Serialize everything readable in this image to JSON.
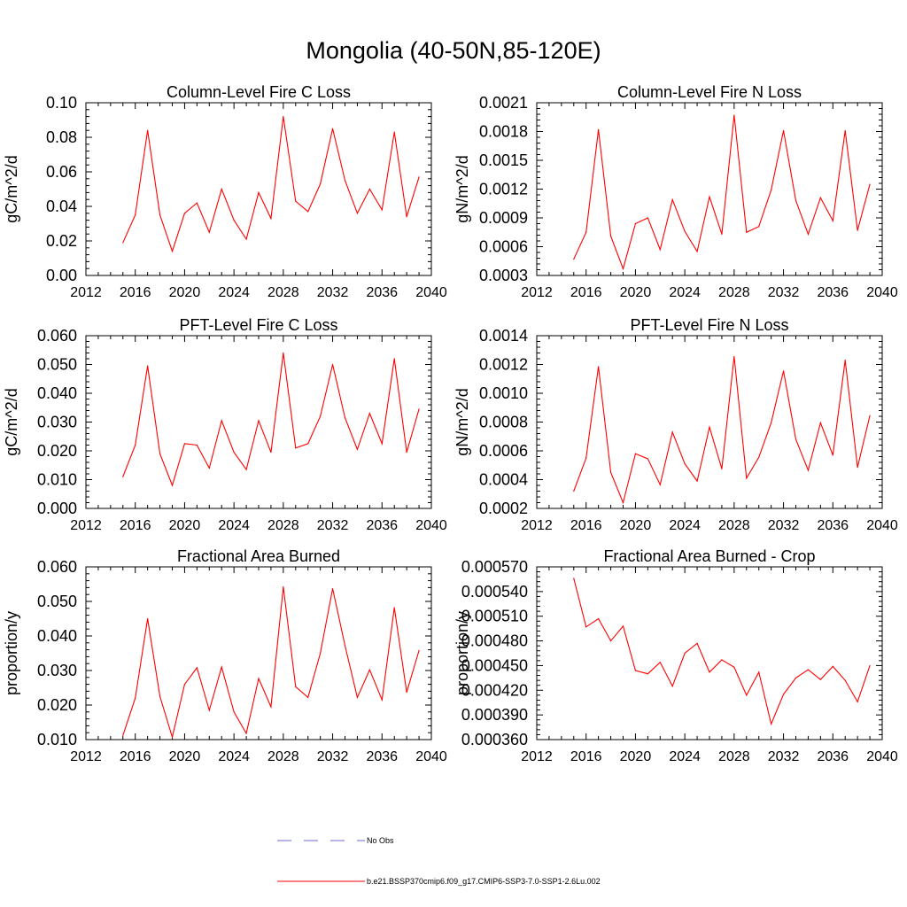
{
  "figure": {
    "title": "Mongolia (40-50N,85-120E)"
  },
  "legend": {
    "items": [
      {
        "label": "No Obs",
        "color": "#6a6ad0",
        "dash": true
      },
      {
        "label": "b.e21.BSSP370cmip6.f09_g17.CMIP6-SSP3-7.0-SSP1-2.6Lu.002",
        "color": "#ff0000",
        "dash": false
      }
    ]
  },
  "chart_data": [
    {
      "type": "line",
      "title": "Column-Level Fire C Loss",
      "ylabel": "gC/m^2/d",
      "xlabel": "",
      "xlim": [
        2012,
        2040
      ],
      "ylim": [
        0,
        0.1
      ],
      "xticks": [
        "2012",
        "2016",
        "2020",
        "2024",
        "2028",
        "2032",
        "2036",
        "2040"
      ],
      "yticks": [
        "0.00",
        "0.02",
        "0.04",
        "0.06",
        "0.08",
        "0.10"
      ],
      "x": [
        2015,
        2016,
        2017,
        2018,
        2019,
        2020,
        2021,
        2022,
        2023,
        2024,
        2025,
        2026,
        2027,
        2028,
        2029,
        2030,
        2031,
        2032,
        2033,
        2034,
        2035,
        2036,
        2037,
        2038,
        2039
      ],
      "series": [
        {
          "name": "",
          "color": "#ff0000",
          "values": [
            0.019,
            0.035,
            0.084,
            0.035,
            0.014,
            0.036,
            0.042,
            0.025,
            0.05,
            0.032,
            0.021,
            0.048,
            0.033,
            0.092,
            0.043,
            0.037,
            0.053,
            0.085,
            0.055,
            0.036,
            0.05,
            0.038,
            0.083,
            0.034,
            0.057
          ]
        }
      ]
    },
    {
      "type": "line",
      "title": "Column-Level Fire N Loss",
      "ylabel": "gN/m^2/d",
      "xlabel": "",
      "xlim": [
        2012,
        2040
      ],
      "ylim": [
        0.0003,
        0.0021
      ],
      "xticks": [
        "2012",
        "2016",
        "2020",
        "2024",
        "2028",
        "2032",
        "2036",
        "2040"
      ],
      "yticks": [
        "0.0003",
        "0.0006",
        "0.0009",
        "0.0012",
        "0.0015",
        "0.0018",
        "0.0021"
      ],
      "x": [
        2015,
        2016,
        2017,
        2018,
        2019,
        2020,
        2021,
        2022,
        2023,
        2024,
        2025,
        2026,
        2027,
        2028,
        2029,
        2030,
        2031,
        2032,
        2033,
        2034,
        2035,
        2036,
        2037,
        2038,
        2039
      ],
      "series": [
        {
          "name": "",
          "color": "#ff0000",
          "values": [
            0.00047,
            0.00075,
            0.00182,
            0.00071,
            0.00037,
            0.00084,
            0.0009,
            0.00057,
            0.00109,
            0.00076,
            0.00055,
            0.00112,
            0.00073,
            0.00197,
            0.00075,
            0.00081,
            0.00119,
            0.00181,
            0.00108,
            0.00073,
            0.00111,
            0.00087,
            0.00181,
            0.00077,
            0.00125
          ]
        }
      ]
    },
    {
      "type": "line",
      "title": "PFT-Level Fire C Loss",
      "ylabel": "gC/m^2/d",
      "xlabel": "",
      "xlim": [
        2012,
        2040
      ],
      "ylim": [
        0,
        0.06
      ],
      "xticks": [
        "2012",
        "2016",
        "2020",
        "2024",
        "2028",
        "2032",
        "2036",
        "2040"
      ],
      "yticks": [
        "0.000",
        "0.010",
        "0.020",
        "0.030",
        "0.040",
        "0.050",
        "0.060"
      ],
      "x": [
        2015,
        2016,
        2017,
        2018,
        2019,
        2020,
        2021,
        2022,
        2023,
        2024,
        2025,
        2026,
        2027,
        2028,
        2029,
        2030,
        2031,
        2032,
        2033,
        2034,
        2035,
        2036,
        2037,
        2038,
        2039
      ],
      "series": [
        {
          "name": "",
          "color": "#ff0000",
          "values": [
            0.011,
            0.022,
            0.0495,
            0.019,
            0.008,
            0.0225,
            0.022,
            0.014,
            0.0305,
            0.0195,
            0.0135,
            0.0305,
            0.0195,
            0.054,
            0.021,
            0.0225,
            0.032,
            0.05,
            0.0315,
            0.0205,
            0.033,
            0.0225,
            0.052,
            0.0195,
            0.0345
          ]
        }
      ]
    },
    {
      "type": "line",
      "title": "PFT-Level Fire N Loss",
      "ylabel": "gN/m^2/d",
      "xlabel": "",
      "xlim": [
        2012,
        2040
      ],
      "ylim": [
        0.0002,
        0.0014
      ],
      "xticks": [
        "2012",
        "2016",
        "2020",
        "2024",
        "2028",
        "2032",
        "2036",
        "2040"
      ],
      "yticks": [
        "0.0002",
        "0.0004",
        "0.0006",
        "0.0008",
        "0.0010",
        "0.0012",
        "0.0014"
      ],
      "x": [
        2015,
        2016,
        2017,
        2018,
        2019,
        2020,
        2021,
        2022,
        2023,
        2024,
        2025,
        2026,
        2027,
        2028,
        2029,
        2030,
        2031,
        2032,
        2033,
        2034,
        2035,
        2036,
        2037,
        2038,
        2039
      ],
      "series": [
        {
          "name": "",
          "color": "#ff0000",
          "values": [
            0.00032,
            0.00055,
            0.001185,
            0.00045,
            0.00024,
            0.00058,
            0.000545,
            0.000365,
            0.00073,
            0.00051,
            0.00039,
            0.000765,
            0.000475,
            0.001255,
            0.00041,
            0.000555,
            0.000795,
            0.001155,
            0.00068,
            0.000465,
            0.000795,
            0.00057,
            0.00123,
            0.000485,
            0.000845
          ]
        }
      ]
    },
    {
      "type": "line",
      "title": "Fractional Area Burned",
      "ylabel": "proportion/y",
      "xlabel": "",
      "xlim": [
        2012,
        2040
      ],
      "ylim": [
        0.01,
        0.06
      ],
      "xticks": [
        "2012",
        "2016",
        "2020",
        "2024",
        "2028",
        "2032",
        "2036",
        "2040"
      ],
      "yticks": [
        "0.010",
        "0.020",
        "0.030",
        "0.040",
        "0.050",
        "0.060"
      ],
      "x": [
        2015,
        2016,
        2017,
        2018,
        2019,
        2020,
        2021,
        2022,
        2023,
        2024,
        2025,
        2026,
        2027,
        2028,
        2029,
        2030,
        2031,
        2032,
        2033,
        2034,
        2035,
        2036,
        2037,
        2038,
        2039
      ],
      "series": [
        {
          "name": "",
          "color": "#ff0000",
          "values": [
            0.0112,
            0.022,
            0.045,
            0.0225,
            0.0107,
            0.026,
            0.0308,
            0.0185,
            0.031,
            0.018,
            0.0118,
            0.0277,
            0.0195,
            0.0542,
            0.0253,
            0.0222,
            0.035,
            0.0537,
            0.0372,
            0.0222,
            0.0302,
            0.0215,
            0.0482,
            0.0237,
            0.0358
          ]
        }
      ]
    },
    {
      "type": "line",
      "title": "Fractional Area Burned - Crop",
      "ylabel": "proportion/y",
      "xlabel": "",
      "xlim": [
        2012,
        2040
      ],
      "ylim": [
        0.00036,
        0.00057
      ],
      "xticks": [
        "2012",
        "2016",
        "2020",
        "2024",
        "2028",
        "2032",
        "2036",
        "2040"
      ],
      "yticks": [
        "0.000360",
        "0.000390",
        "0.000420",
        "0.000450",
        "0.000480",
        "0.000510",
        "0.000540",
        "0.000570"
      ],
      "x": [
        2015,
        2016,
        2017,
        2018,
        2019,
        2020,
        2021,
        2022,
        2023,
        2024,
        2025,
        2026,
        2027,
        2028,
        2029,
        2030,
        2031,
        2032,
        2033,
        2034,
        2035,
        2036,
        2037,
        2038,
        2039
      ],
      "series": [
        {
          "name": "",
          "color": "#ff0000",
          "values": [
            0.000556,
            0.000497,
            0.000507,
            0.00048,
            0.000498,
            0.000444,
            0.00044,
            0.000454,
            0.000425,
            0.000465,
            0.000477,
            0.000442,
            0.000457,
            0.000448,
            0.000414,
            0.000442,
            0.000379,
            0.000415,
            0.000435,
            0.000445,
            0.000433,
            0.000449,
            0.000432,
            0.000406,
            0.00045
          ]
        }
      ]
    }
  ]
}
